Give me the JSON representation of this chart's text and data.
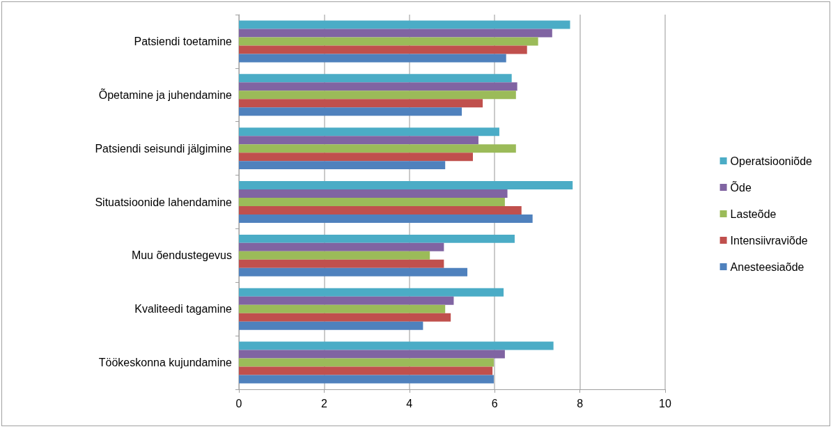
{
  "chart_data": {
    "type": "bar",
    "orientation": "horizontal",
    "categories": [
      "Patsiendi toetamine",
      "Õpetamine ja juhendamine",
      "Patsiendi seisundi jälgimine",
      "Situatsioonide lahendamine",
      "Muu õendustegevus",
      "Kvaliteedi tagamine",
      "Töökeskonna kujundamine"
    ],
    "series": [
      {
        "name": "Operatsiooniõde",
        "color": "#4bacc6",
        "values": [
          7.77,
          6.4,
          6.11,
          7.83,
          6.47,
          6.21,
          7.38
        ]
      },
      {
        "name": "Õde",
        "color": "#8064a2",
        "values": [
          7.35,
          6.53,
          5.62,
          6.3,
          4.81,
          5.04,
          6.24
        ]
      },
      {
        "name": "Lasteõde",
        "color": "#9bbb59",
        "values": [
          7.02,
          6.5,
          6.5,
          6.24,
          4.48,
          4.84,
          5.98
        ]
      },
      {
        "name": "Intensiivraviõde",
        "color": "#c0504d",
        "values": [
          6.76,
          5.72,
          5.49,
          6.63,
          4.81,
          4.97,
          5.95
        ]
      },
      {
        "name": "Anesteesiaõde",
        "color": "#4f81bd",
        "values": [
          6.27,
          5.23,
          4.84,
          6.89,
          5.36,
          4.32,
          5.98
        ]
      }
    ],
    "xlim": [
      0,
      10
    ],
    "xticks": [
      0,
      2,
      4,
      6,
      8,
      10
    ],
    "grid": "x",
    "legend": "right"
  }
}
